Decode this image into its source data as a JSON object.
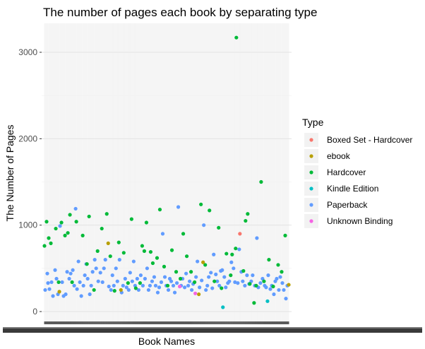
{
  "chart_data": {
    "type": "scatter",
    "title": "The number of pages each book by separating type",
    "xlabel": "Book Names",
    "ylabel": "The Number of Pages",
    "ylim": [
      -100,
      3300
    ],
    "yticks": [
      0,
      1000,
      2000,
      3000
    ],
    "x_tick_labels_legible": false,
    "grid": true,
    "background": "white",
    "legend": {
      "title": "Type",
      "placement": "right",
      "entries": [
        "Boxed Set - Hardcover",
        "ebook",
        "Hardcover",
        "Kindle Edition",
        "Paperback",
        "Unknown Binding"
      ]
    },
    "colors": {
      "Boxed Set - Hardcover": "#F8766D",
      "ebook": "#B79F00",
      "Hardcover": "#00BA38",
      "Kindle Edition": "#00BFC4",
      "Paperback": "#619CFF",
      "Unknown Binding": "#F564E3"
    },
    "series": [
      {
        "name": "Boxed Set - Hardcover",
        "points": [
          [
            276,
            900
          ]
        ]
      },
      {
        "name": "ebook",
        "points": [
          [
            21,
            230
          ],
          [
            90,
            790
          ],
          [
            108,
            250
          ],
          [
            218,
            200
          ],
          [
            224,
            570
          ],
          [
            345,
            310
          ]
        ]
      },
      {
        "name": "Kindle Edition",
        "points": [
          [
            252,
            50
          ],
          [
            315,
            120
          ]
        ]
      },
      {
        "name": "Unknown Binding",
        "points": [
          [
            191,
            290
          ],
          [
            213,
            210
          ]
        ]
      },
      {
        "name": "Hardcover",
        "points": [
          [
            0,
            760
          ],
          [
            3,
            1040
          ],
          [
            6,
            850
          ],
          [
            9,
            790
          ],
          [
            16,
            960
          ],
          [
            20,
            340
          ],
          [
            24,
            1030
          ],
          [
            29,
            880
          ],
          [
            33,
            910
          ],
          [
            36,
            1120
          ],
          [
            39,
            340
          ],
          [
            45,
            1040
          ],
          [
            54,
            880
          ],
          [
            60,
            550
          ],
          [
            63,
            1100
          ],
          [
            70,
            250
          ],
          [
            75,
            700
          ],
          [
            81,
            960
          ],
          [
            88,
            1130
          ],
          [
            93,
            640
          ],
          [
            99,
            240
          ],
          [
            105,
            800
          ],
          [
            112,
            680
          ],
          [
            118,
            330
          ],
          [
            123,
            1070
          ],
          [
            129,
            270
          ],
          [
            135,
            330
          ],
          [
            138,
            760
          ],
          [
            141,
            700
          ],
          [
            144,
            1030
          ],
          [
            150,
            690
          ],
          [
            153,
            560
          ],
          [
            159,
            620
          ],
          [
            163,
            1180
          ],
          [
            169,
            520
          ],
          [
            174,
            300
          ],
          [
            180,
            710
          ],
          [
            186,
            460
          ],
          [
            192,
            380
          ],
          [
            196,
            900
          ],
          [
            201,
            640
          ],
          [
            207,
            460
          ],
          [
            212,
            340
          ],
          [
            221,
            1240
          ],
          [
            227,
            540
          ],
          [
            233,
            1170
          ],
          [
            240,
            350
          ],
          [
            246,
            970
          ],
          [
            250,
            270
          ],
          [
            257,
            670
          ],
          [
            263,
            420
          ],
          [
            265,
            660
          ],
          [
            270,
            730
          ],
          [
            281,
            470
          ],
          [
            284,
            1050
          ],
          [
            287,
            1130
          ],
          [
            290,
            320
          ],
          [
            296,
            100
          ],
          [
            299,
            300
          ],
          [
            306,
            1500
          ],
          [
            310,
            350
          ],
          [
            317,
            600
          ],
          [
            323,
            290
          ],
          [
            330,
            540
          ],
          [
            335,
            460
          ],
          [
            340,
            880
          ],
          [
            271,
            3170
          ]
        ]
      },
      {
        "name": "Paperback",
        "points": [
          [
            1,
            250
          ],
          [
            4,
            440
          ],
          [
            7,
            260
          ],
          [
            10,
            340
          ],
          [
            12,
            180
          ],
          [
            15,
            480
          ],
          [
            17,
            380
          ],
          [
            19,
            200
          ],
          [
            22,
            990
          ],
          [
            25,
            340
          ],
          [
            27,
            180
          ],
          [
            30,
            200
          ],
          [
            32,
            460
          ],
          [
            35,
            380
          ],
          [
            37,
            440
          ],
          [
            40,
            480
          ],
          [
            42,
            300
          ],
          [
            44,
            1190
          ],
          [
            46,
            260
          ],
          [
            48,
            580
          ],
          [
            50,
            340
          ],
          [
            52,
            180
          ],
          [
            55,
            300
          ],
          [
            57,
            420
          ],
          [
            59,
            550
          ],
          [
            61,
            380
          ],
          [
            64,
            200
          ],
          [
            66,
            300
          ],
          [
            68,
            460
          ],
          [
            71,
            600
          ],
          [
            73,
            500
          ],
          [
            76,
            350
          ],
          [
            79,
            450
          ],
          [
            82,
            340
          ],
          [
            84,
            500
          ],
          [
            86,
            600
          ],
          [
            91,
            290
          ],
          [
            94,
            250
          ],
          [
            96,
            420
          ],
          [
            98,
            300
          ],
          [
            101,
            500
          ],
          [
            103,
            350
          ],
          [
            106,
            600
          ],
          [
            109,
            220
          ],
          [
            111,
            300
          ],
          [
            114,
            380
          ],
          [
            116,
            280
          ],
          [
            119,
            250
          ],
          [
            121,
            450
          ],
          [
            124,
            350
          ],
          [
            126,
            580
          ],
          [
            128,
            300
          ],
          [
            131,
            380
          ],
          [
            133,
            250
          ],
          [
            136,
            420
          ],
          [
            139,
            300
          ],
          [
            142,
            380
          ],
          [
            145,
            500
          ],
          [
            147,
            250
          ],
          [
            149,
            300
          ],
          [
            152,
            350
          ],
          [
            155,
            400
          ],
          [
            157,
            300
          ],
          [
            160,
            220
          ],
          [
            162,
            280
          ],
          [
            165,
            340
          ],
          [
            167,
            900
          ],
          [
            170,
            400
          ],
          [
            172,
            300
          ],
          [
            175,
            250
          ],
          [
            177,
            380
          ],
          [
            179,
            350
          ],
          [
            182,
            300
          ],
          [
            184,
            220
          ],
          [
            187,
            330
          ],
          [
            189,
            1210
          ],
          [
            193,
            300
          ],
          [
            195,
            380
          ],
          [
            198,
            280
          ],
          [
            200,
            440
          ],
          [
            203,
            300
          ],
          [
            205,
            350
          ],
          [
            208,
            250
          ],
          [
            210,
            320
          ],
          [
            214,
            400
          ],
          [
            216,
            580
          ],
          [
            219,
            280
          ],
          [
            222,
            360
          ],
          [
            225,
            1000
          ],
          [
            228,
            250
          ],
          [
            230,
            300
          ],
          [
            232,
            400
          ],
          [
            235,
            450
          ],
          [
            237,
            270
          ],
          [
            239,
            660
          ],
          [
            242,
            430
          ],
          [
            244,
            350
          ],
          [
            247,
            300
          ],
          [
            249,
            470
          ],
          [
            251,
            480
          ],
          [
            254,
            400
          ],
          [
            256,
            280
          ],
          [
            259,
            330
          ],
          [
            261,
            350
          ],
          [
            264,
            570
          ],
          [
            267,
            500
          ],
          [
            269,
            340
          ],
          [
            273,
            330
          ],
          [
            275,
            720
          ],
          [
            278,
            460
          ],
          [
            280,
            350
          ],
          [
            283,
            300
          ],
          [
            286,
            420
          ],
          [
            289,
            320
          ],
          [
            292,
            350
          ],
          [
            294,
            420
          ],
          [
            297,
            300
          ],
          [
            300,
            850
          ],
          [
            302,
            280
          ],
          [
            305,
            330
          ],
          [
            308,
            380
          ],
          [
            311,
            300
          ],
          [
            313,
            280
          ],
          [
            316,
            420
          ],
          [
            319,
            260
          ],
          [
            321,
            300
          ],
          [
            324,
            200
          ],
          [
            326,
            350
          ],
          [
            328,
            380
          ],
          [
            331,
            250
          ],
          [
            333,
            400
          ],
          [
            336,
            330
          ],
          [
            338,
            250
          ],
          [
            341,
            150
          ],
          [
            343,
            300
          ],
          [
            5,
            330
          ]
        ]
      }
    ]
  }
}
